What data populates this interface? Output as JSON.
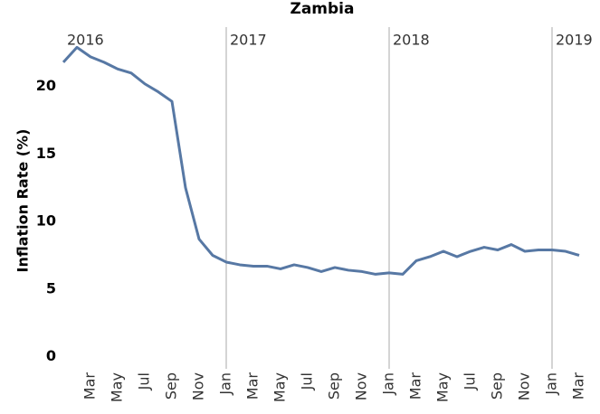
{
  "chart_data": {
    "type": "line",
    "title": "Zambia",
    "y_label": "Inflation Rate (%)",
    "categories": [
      null,
      null,
      "Mar",
      null,
      "May",
      null,
      "Jul",
      null,
      "Sep",
      null,
      "Nov",
      null,
      "Jan",
      null,
      "Mar",
      null,
      "May",
      null,
      "Jul",
      null,
      "Sep",
      null,
      "Nov",
      null,
      "Jan",
      null,
      "Mar",
      null,
      "May",
      null,
      "Jul",
      null,
      "Sep",
      null,
      "Nov",
      null,
      "Jan",
      null,
      "Mar"
    ],
    "series": [
      {
        "name": "Zambia",
        "color": "#5778a4",
        "values": [
          21.8,
          22.9,
          22.2,
          21.8,
          21.3,
          21.0,
          20.2,
          19.6,
          18.9,
          12.5,
          8.7,
          7.5,
          7.0,
          6.8,
          6.7,
          6.7,
          6.5,
          6.8,
          6.6,
          6.3,
          6.6,
          6.4,
          6.3,
          6.1,
          6.2,
          6.1,
          7.1,
          7.4,
          7.8,
          7.4,
          7.8,
          8.1,
          7.9,
          8.3,
          7.8,
          7.9,
          7.9,
          7.8,
          7.5
        ]
      }
    ],
    "year_markers": [
      {
        "label": "2016",
        "at": 0
      },
      {
        "label": "2017",
        "at": 12
      },
      {
        "label": "2018",
        "at": 24
      },
      {
        "label": "2019",
        "at": 36
      }
    ],
    "ylim": [
      -0.9,
      24.4
    ],
    "yticks": [
      0,
      5,
      10,
      15,
      20
    ],
    "grid": false
  }
}
